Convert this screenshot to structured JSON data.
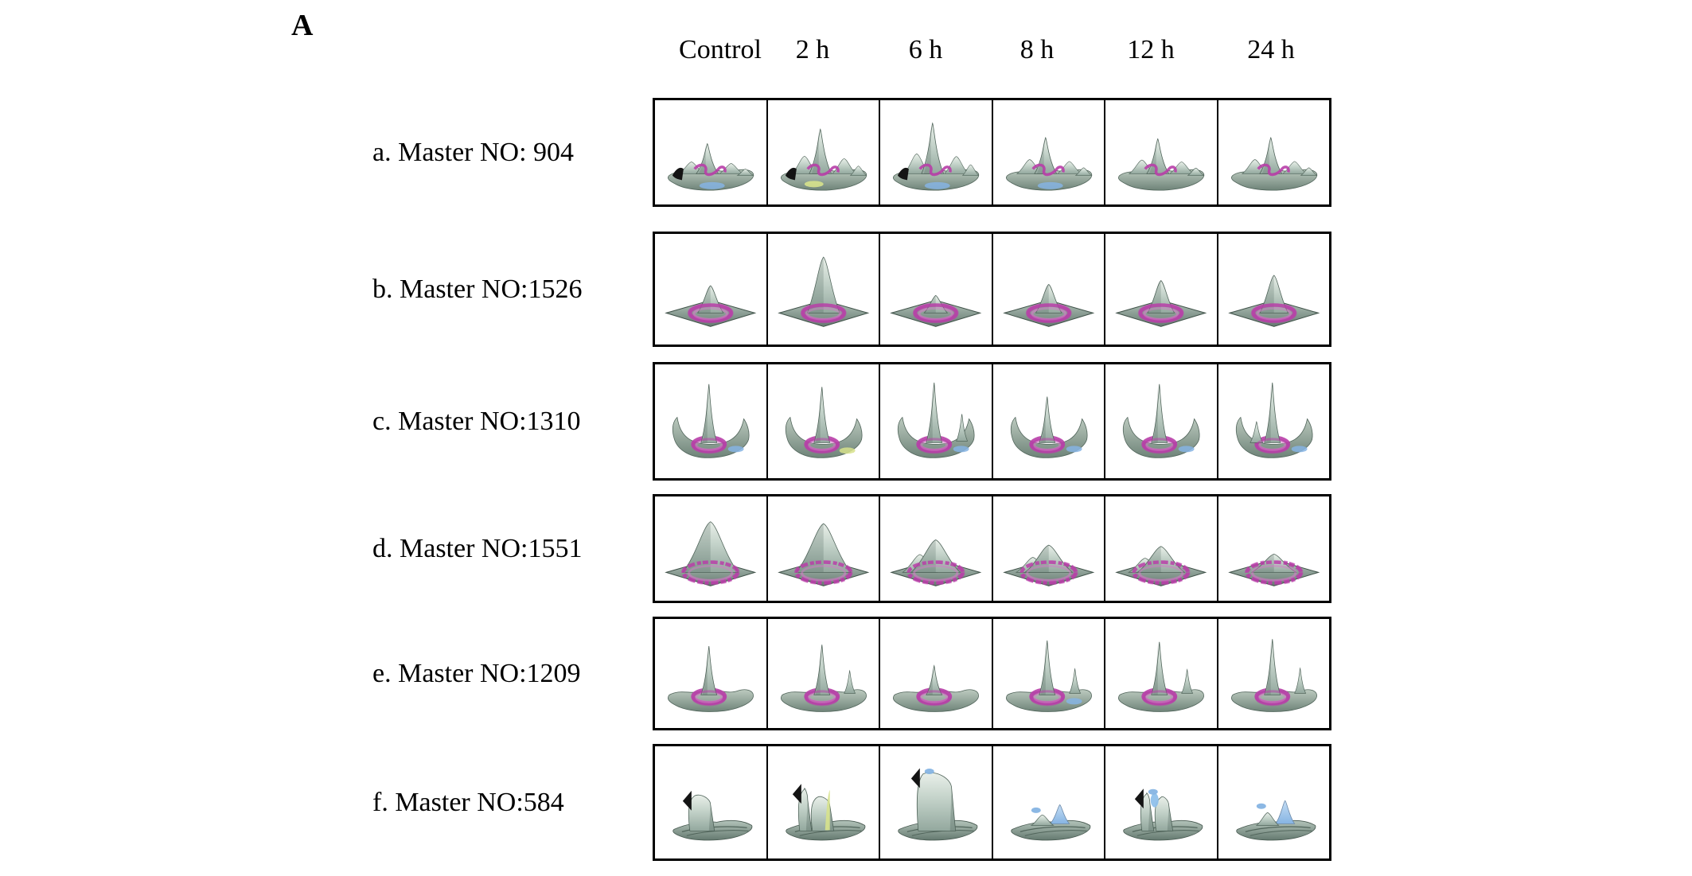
{
  "figure": {
    "panel_label": "A",
    "column_headers": [
      "Control",
      "2 h",
      "6 h",
      "8 h",
      "12 h",
      "24 h"
    ],
    "colors": {
      "surface_light": "#e9efe9",
      "surface": "#c3d2c9",
      "surface_dark": "#6e8378",
      "base_dark": "#64796f",
      "outline": "#51655b",
      "magenta": "#b83ea8",
      "magenta_light": "#d07ec4",
      "shadow_black": "#141414",
      "blue": "#86b4e3",
      "yellow": "#d7e28c",
      "border": "#000000"
    },
    "rows": [
      {
        "label": "a. Master NO: 904",
        "master_no": "904",
        "cells": [
          {
            "type": "rough",
            "height": 0.5,
            "accents": [
              "shadow",
              "blue"
            ]
          },
          {
            "type": "rough",
            "height": 0.74,
            "accents": [
              "shadow",
              "yellow"
            ]
          },
          {
            "type": "rough",
            "height": 0.84,
            "accents": [
              "shadow",
              "blue"
            ]
          },
          {
            "type": "rough",
            "height": 0.6,
            "accents": [
              "blue"
            ]
          },
          {
            "type": "rough",
            "height": 0.58,
            "accents": []
          },
          {
            "type": "rough",
            "height": 0.6,
            "accents": []
          }
        ]
      },
      {
        "label": "b. Master NO:1526",
        "master_no": "1526",
        "cells": [
          {
            "type": "cone",
            "height": 0.42,
            "accents": []
          },
          {
            "type": "cone",
            "height": 0.86,
            "accents": []
          },
          {
            "type": "cone",
            "height": 0.27,
            "accents": []
          },
          {
            "type": "cone",
            "height": 0.44,
            "accents": []
          },
          {
            "type": "cone",
            "height": 0.5,
            "accents": []
          },
          {
            "type": "cone",
            "height": 0.58,
            "accents": []
          }
        ]
      },
      {
        "label": "c. Master NO:1310",
        "master_no": "1310",
        "cells": [
          {
            "type": "spike",
            "height": 0.84,
            "flares": true,
            "accents": [
              "blue"
            ]
          },
          {
            "type": "spike",
            "height": 0.8,
            "flares": true,
            "accents": [
              "yellow"
            ]
          },
          {
            "type": "spike",
            "height": 0.86,
            "flares": true,
            "sub": "right",
            "accents": [
              "blue"
            ]
          },
          {
            "type": "spike",
            "height": 0.66,
            "flares": true,
            "accents": [
              "blue"
            ]
          },
          {
            "type": "spike",
            "height": 0.84,
            "flares": true,
            "accents": [
              "blue"
            ]
          },
          {
            "type": "spike",
            "height": 0.86,
            "flares": true,
            "sub": "left",
            "accents": [
              "blue"
            ]
          }
        ]
      },
      {
        "label": "d. Master NO:1551",
        "master_no": "1551",
        "cells": [
          {
            "type": "cone",
            "height": 0.78,
            "wide": true,
            "jag": true,
            "accents": []
          },
          {
            "type": "cone",
            "height": 0.75,
            "wide": true,
            "jag": true,
            "accents": []
          },
          {
            "type": "cone",
            "height": 0.5,
            "wide": true,
            "jag": true,
            "sub": true,
            "accents": []
          },
          {
            "type": "cone",
            "height": 0.42,
            "wide": true,
            "jag": true,
            "sub": true,
            "accents": []
          },
          {
            "type": "cone",
            "height": 0.4,
            "wide": true,
            "jag": true,
            "sub": true,
            "accents": []
          },
          {
            "type": "cone",
            "height": 0.28,
            "wide": true,
            "jag": true,
            "accents": []
          }
        ]
      },
      {
        "label": "e. Master NO:1209",
        "master_no": "1209",
        "cells": [
          {
            "type": "spike",
            "height": 0.7,
            "accents": []
          },
          {
            "type": "spike",
            "height": 0.72,
            "sub": "right",
            "accents": []
          },
          {
            "type": "spike",
            "height": 0.42,
            "accents": []
          },
          {
            "type": "spike",
            "height": 0.78,
            "sub": "right",
            "accents": [
              "blue"
            ]
          },
          {
            "type": "spike",
            "height": 0.76,
            "sub": "right",
            "accents": []
          },
          {
            "type": "spike",
            "height": 0.8,
            "sub": "right",
            "accents": []
          }
        ]
      },
      {
        "label": "f. Master NO:584",
        "master_no": "584",
        "cells": [
          {
            "type": "fold",
            "variant": "curtain",
            "height": 0.52,
            "accents": [
              "shadow"
            ]
          },
          {
            "type": "fold",
            "variant": "notch",
            "height": 0.62,
            "accents": [
              "shadow",
              "yellow"
            ]
          },
          {
            "type": "fold",
            "variant": "wall",
            "height": 0.85,
            "accents": [
              "shadow",
              "blueTip"
            ]
          },
          {
            "type": "fold",
            "variant": "lowwave",
            "height": 0.28,
            "accents": [
              "blueTip"
            ]
          },
          {
            "type": "fold",
            "variant": "twofold",
            "height": 0.55,
            "accents": [
              "shadow",
              "blueTip"
            ]
          },
          {
            "type": "fold",
            "variant": "lowwave",
            "height": 0.34,
            "accents": [
              "blueTip"
            ]
          }
        ]
      }
    ]
  }
}
